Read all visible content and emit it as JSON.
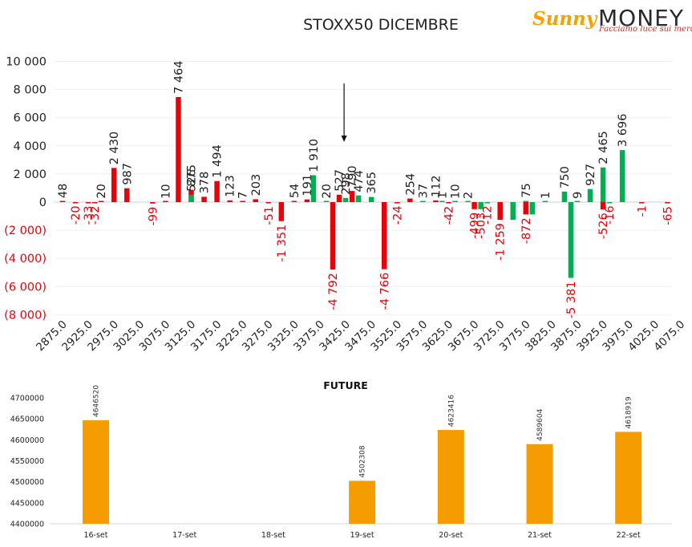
{
  "main_chart": {
    "title": "STOXX50 DICEMBRE"
  },
  "logo": {
    "brand_part1": "Sunny",
    "brand_part2": "MONEY",
    "tagline": "Facciamo luce sui mercati"
  },
  "colors": {
    "call": "#e8000b",
    "put": "#00b050",
    "negative_label": "#e8000b",
    "future_bar": "#f59c00"
  },
  "chart_data": [
    {
      "type": "bar",
      "title": "STOXX50 DICEMBRE",
      "ylim": [
        -8000,
        10000
      ],
      "yticks": [
        "10 000",
        "8 000",
        "6 000",
        "4 000",
        "2 000",
        "0",
        "(2 000)",
        "(4 000)",
        "(6 000)",
        "(8 000)"
      ],
      "x_labels": [
        "2875.0",
        "2925.0",
        "2975.0",
        "3025.0",
        "3075.0",
        "3125.0",
        "3175.0",
        "3225.0",
        "3275.0",
        "3325.0",
        "3375.0",
        "3425.0",
        "3475.0",
        "3525.0",
        "3575.0",
        "3625.0",
        "3675.0",
        "3725.0",
        "3775.0",
        "3825.0",
        "3875.0",
        "3925.0",
        "3975.0",
        "4025.0",
        "4075.0"
      ],
      "strike_start": 2875,
      "strike_step": 25,
      "arrow_strike": 3425,
      "series": [
        {
          "values": [
            {
              "strike": 2875,
              "value": 48,
              "label": "48"
            },
            {
              "strike": 2900,
              "value": -20,
              "label": "-20"
            },
            {
              "strike": 2925,
              "value": -33,
              "label": "-33"
            },
            {
              "strike": 2937.5,
              "value": -32,
              "label": "-32"
            },
            {
              "strike": 2950,
              "value": 20,
              "label": "20"
            },
            {
              "strike": 2975,
              "value": 2430,
              "label": "2 430"
            },
            {
              "strike": 3000,
              "value": 987,
              "label": "987"
            },
            {
              "strike": 3050,
              "value": -99,
              "label": "-99"
            },
            {
              "strike": 3075,
              "value": 10,
              "label": "10"
            },
            {
              "strike": 3100,
              "value": 7464,
              "label": "7 464"
            },
            {
              "strike": 3125,
              "value": 875,
              "label": "875"
            },
            {
              "strike": 3150,
              "value": 378,
              "label": "378"
            },
            {
              "strike": 3175,
              "value": 1494,
              "label": "1 494"
            },
            {
              "strike": 3200,
              "value": 123,
              "label": "123"
            },
            {
              "strike": 3225,
              "value": 7,
              "label": "7"
            },
            {
              "strike": 3250,
              "value": 203,
              "label": "203"
            },
            {
              "strike": 3275,
              "value": -51,
              "label": "-51"
            },
            {
              "strike": 3300,
              "value": -1351,
              "label": "-1 351"
            },
            {
              "strike": 3325,
              "value": 54,
              "label": "54"
            },
            {
              "strike": 3350,
              "value": 191,
              "label": "191"
            },
            {
              "strike": 3400,
              "value": -4792,
              "label": "-4 792"
            },
            {
              "strike": 3412.5,
              "value": 527,
              "label": "527"
            },
            {
              "strike": 3437.5,
              "value": 790,
              "label": "790"
            },
            {
              "strike": 3500,
              "value": -4766,
              "label": "-4 766"
            },
            {
              "strike": 3525,
              "value": -24,
              "label": "-24"
            },
            {
              "strike": 3550,
              "value": 254,
              "label": "254"
            },
            {
              "strike": 3600,
              "value": 112,
              "label": "112"
            },
            {
              "strike": 3625,
              "value": -42,
              "label": "-42"
            },
            {
              "strike": 3675,
              "value": -499,
              "label": "-499"
            },
            {
              "strike": 3725,
              "value": -1259,
              "label": "-1 259"
            },
            {
              "strike": 3775,
              "value": -872,
              "label": "-872"
            },
            {
              "strike": 3925,
              "value": -526,
              "label": "-526"
            },
            {
              "strike": 4000,
              "value": -1,
              "label": "-1"
            },
            {
              "strike": 4050,
              "value": -65,
              "label": "-65"
            }
          ]
        },
        {
          "values": [
            {
              "strike": 3125,
              "value": 526,
              "label": "526"
            },
            {
              "strike": 3362.5,
              "value": 1910,
              "label": "1 910"
            },
            {
              "strike": 3387.5,
              "value": 20,
              "label": "20"
            },
            {
              "strike": 3425,
              "value": 298,
              "label": "298"
            },
            {
              "strike": 3450,
              "value": 474,
              "label": "474"
            },
            {
              "strike": 3475,
              "value": 365,
              "label": "365"
            },
            {
              "strike": 3575,
              "value": 37,
              "label": "37"
            },
            {
              "strike": 3612.5,
              "value": 1,
              "label": "1"
            },
            {
              "strike": 3637.5,
              "value": 10,
              "label": "10"
            },
            {
              "strike": 3662.5,
              "value": 2,
              "label": "2"
            },
            {
              "strike": 3687.5,
              "value": -503,
              "label": "-503"
            },
            {
              "strike": 3700,
              "value": -12,
              "label": "-12"
            },
            {
              "strike": 3750,
              "value": -1259,
              "label": ""
            },
            {
              "strike": 3775,
              "value": 75,
              "label": "75"
            },
            {
              "strike": 3787.5,
              "value": -872,
              "label": ""
            },
            {
              "strike": 3812.5,
              "value": 1,
              "label": "1"
            },
            {
              "strike": 3850,
              "value": 750,
              "label": "750"
            },
            {
              "strike": 3875,
              "value": 9,
              "label": "9"
            },
            {
              "strike": 3862.5,
              "value": -5381,
              "label": "-5 381"
            },
            {
              "strike": 3900,
              "value": 927,
              "label": "927"
            },
            {
              "strike": 3925,
              "value": 2465,
              "label": "2 465"
            },
            {
              "strike": 3937.5,
              "value": -16,
              "label": "-16"
            },
            {
              "strike": 3962.5,
              "value": 3696,
              "label": "3 696"
            }
          ]
        }
      ]
    },
    {
      "type": "bar",
      "title": "FUTURE",
      "categories": [
        "16-set",
        "17-set",
        "18-set",
        "19-set",
        "20-set",
        "21-set",
        "22-set"
      ],
      "values": [
        4646520,
        null,
        null,
        4502308,
        4623416,
        4589604,
        4618919
      ],
      "ylim": [
        4400000,
        4700000
      ],
      "yticks": [
        "4700000",
        "4650000",
        "4600000",
        "4550000",
        "4500000",
        "4450000",
        "4400000"
      ]
    }
  ]
}
